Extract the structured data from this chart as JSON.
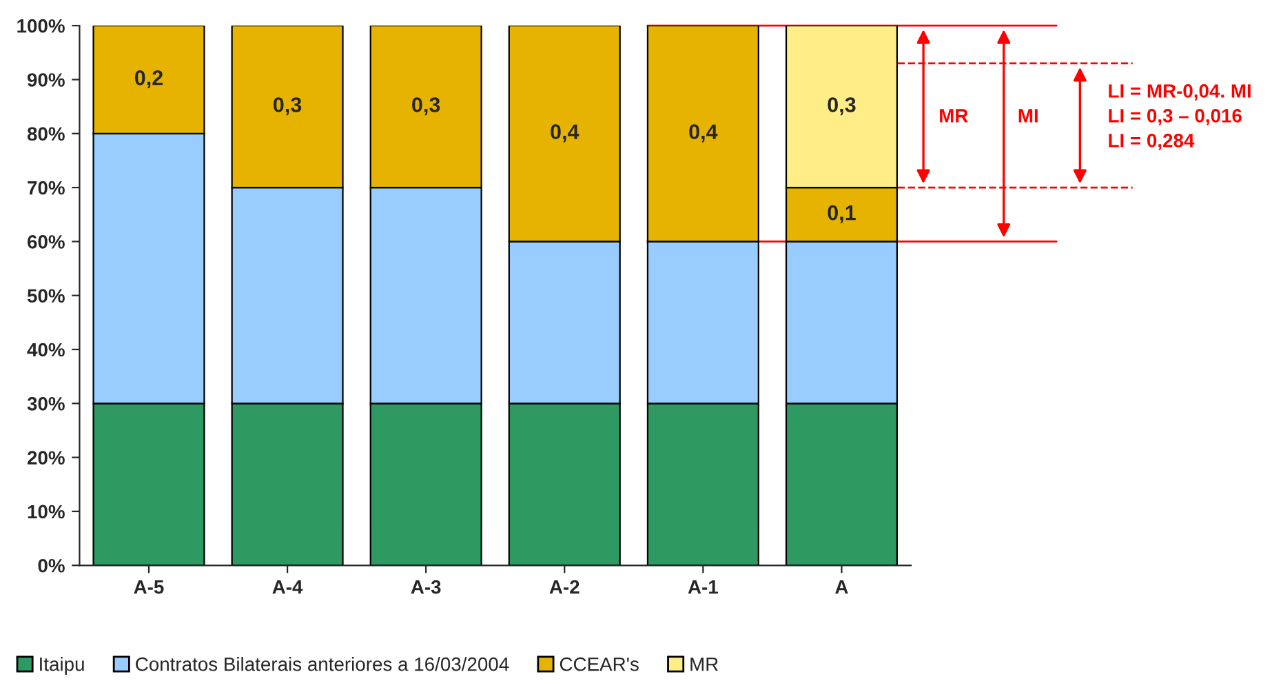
{
  "chart_data": {
    "type": "bar",
    "stacked": true,
    "categories": [
      "A-5",
      "A-4",
      "A-3",
      "A-2",
      "A-1",
      "A"
    ],
    "series": [
      {
        "name": "Itaipu",
        "color": "#2e9960",
        "values": [
          0.3,
          0.3,
          0.3,
          0.3,
          0.3,
          0.3
        ]
      },
      {
        "name": "Contratos Bilaterais anteriores a 16/03/2004",
        "color": "#99ccff",
        "values": [
          0.5,
          0.4,
          0.4,
          0.3,
          0.3,
          0.3
        ]
      },
      {
        "name": "CCEAR's",
        "color": "#e6b400",
        "values": [
          0.2,
          0.3,
          0.3,
          0.4,
          0.4,
          0.1
        ],
        "value_labels": [
          "0,2",
          "0,3",
          "0,3",
          "0,4",
          "0,4",
          "0,1"
        ]
      },
      {
        "name": "MR",
        "color": "#ffee88",
        "values": [
          null,
          null,
          null,
          null,
          null,
          0.3
        ],
        "value_labels": [
          null,
          null,
          null,
          null,
          null,
          "0,3"
        ]
      }
    ],
    "ylim": [
      0,
      1
    ],
    "yticks": [
      {
        "value": 0,
        "label": "0%"
      },
      {
        "value": 0.1,
        "label": "10%"
      },
      {
        "value": 0.2,
        "label": "20%"
      },
      {
        "value": 0.3,
        "label": "30%"
      },
      {
        "value": 0.4,
        "label": "40%"
      },
      {
        "value": 0.5,
        "label": "50%"
      },
      {
        "value": 0.6,
        "label": "60%"
      },
      {
        "value": 0.7,
        "label": "70%"
      },
      {
        "value": 0.8,
        "label": "80%"
      },
      {
        "value": 0.9,
        "label": "90%"
      },
      {
        "value": 1,
        "label": "100%"
      }
    ],
    "ref_lines": [
      {
        "axis": "y",
        "value": 1,
        "color": "#ff0000",
        "line_style": "solid"
      },
      {
        "axis": "y",
        "value": 0.93,
        "color": "#ff0000",
        "line_style": "dashed"
      },
      {
        "axis": "y",
        "value": 0.7,
        "color": "#ff0000",
        "line_style": "dashed"
      },
      {
        "axis": "y",
        "value": 0.6,
        "color": "#ff0000",
        "line_style": "solid"
      }
    ],
    "annotations": [
      "MR",
      "MI",
      "LI = MR-0,04. MI\nLI = 0,3 – 0,016\nLI = 0,284"
    ],
    "grid": false,
    "legend": "bottom"
  }
}
